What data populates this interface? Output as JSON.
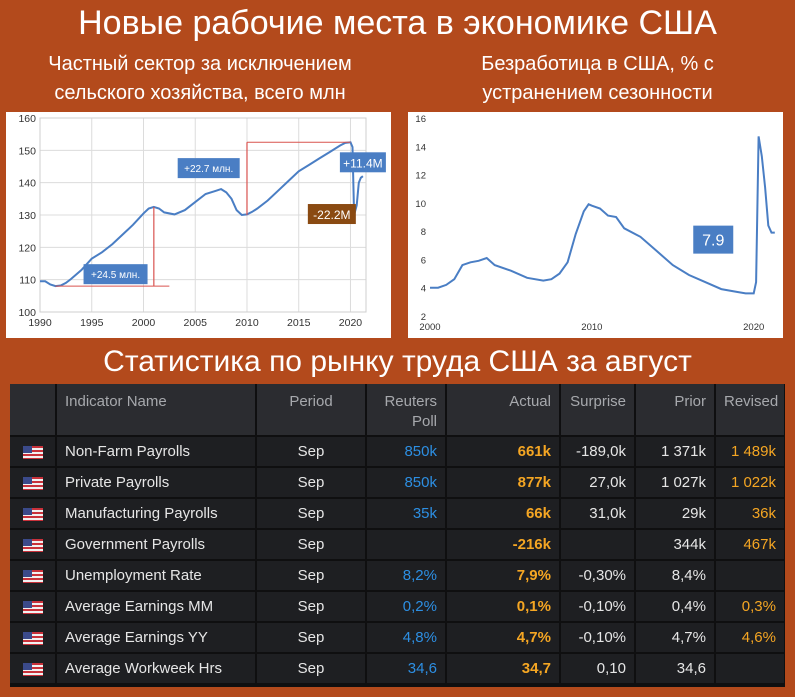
{
  "header": {
    "title": "Новые рабочие места в экономике США"
  },
  "left_chart": {
    "title_line1": "Частный сектор за исключением",
    "title_line2": "сельского хозяйства, всего млн"
  },
  "right_chart": {
    "title_line1": "Безработица в США, % с",
    "title_line2": "устранением сезонности"
  },
  "colors": {
    "background": "#b34a1c",
    "line": "#4a7ec4",
    "label_blue": "#4a7ec4",
    "label_brown": "#8a4a12",
    "red": "#d9534f",
    "table_bg": "#1e1f22",
    "blue_value": "#2d8fe3",
    "orange_value": "#f5a623"
  },
  "chart_data": [
    {
      "type": "line",
      "xlim": [
        1990,
        2021.5
      ],
      "ylim": [
        100,
        160
      ],
      "xticks": [
        "1990",
        "1995",
        "2000",
        "2005",
        "2010",
        "2015",
        "2020"
      ],
      "yticks": [
        "100",
        "110",
        "120",
        "130",
        "140",
        "150",
        "160"
      ],
      "grid": true,
      "x": [
        1990,
        1990.5,
        1991,
        1991.5,
        1992,
        1992.5,
        1993,
        1994,
        1995,
        1996,
        1997,
        1998,
        1999,
        2000,
        2000.5,
        2001,
        2001.5,
        2002,
        2003,
        2004,
        2005,
        2006,
        2007,
        2007.5,
        2008,
        2008.5,
        2009,
        2009.5,
        2010,
        2010.5,
        2011,
        2012,
        2013,
        2014,
        2015,
        2016,
        2017,
        2018,
        2019,
        2019.5,
        2020,
        2020.2,
        2020.35,
        2020.6,
        2020.8,
        2021,
        2021.2
      ],
      "values": [
        109.5,
        109.5,
        108.5,
        108,
        108.2,
        109,
        110.2,
        113,
        116.5,
        118.5,
        121,
        124,
        127,
        130.5,
        132,
        132.5,
        132,
        130.8,
        130.2,
        131.5,
        134,
        136.5,
        137.5,
        138,
        137,
        135,
        131.5,
        130,
        130.2,
        131,
        132,
        134.5,
        137.5,
        140.5,
        143.5,
        145.5,
        147.5,
        149.5,
        151.5,
        152.3,
        152.5,
        151,
        130,
        133,
        140,
        141.5,
        142
      ],
      "annotations": [
        {
          "text": "+24.5 млн.",
          "x": 1997.3,
          "y": 111.7
        },
        {
          "text": "+22.7 млн.",
          "x": 2006.3,
          "y": 144.5
        },
        {
          "text": "-22.2M",
          "x": 2018.2,
          "y": 130.3
        },
        {
          "text": "+11.4M",
          "x": 2021.2,
          "y": 146.3
        }
      ]
    },
    {
      "type": "line",
      "xlim": [
        2000,
        2021.5
      ],
      "ylim": [
        2,
        16
      ],
      "xticks": [
        "2000",
        "2010",
        "2020"
      ],
      "yticks": [
        "2",
        "4",
        "6",
        "8",
        "10",
        "12",
        "14",
        "16"
      ],
      "grid": false,
      "x": [
        2000,
        2000.5,
        2001,
        2001.5,
        2002,
        2002.5,
        2003,
        2003.5,
        2004,
        2005,
        2006,
        2007,
        2007.5,
        2008,
        2008.5,
        2009,
        2009.5,
        2009.8,
        2010,
        2010.5,
        2011,
        2011.5,
        2012,
        2013,
        2014,
        2015,
        2016,
        2017,
        2018,
        2019,
        2019.5,
        2020,
        2020.15,
        2020.3,
        2020.5,
        2020.7,
        2020.9,
        2021.1,
        2021.3
      ],
      "values": [
        4.0,
        4.0,
        4.2,
        4.6,
        5.6,
        5.8,
        5.9,
        6.1,
        5.6,
        5.2,
        4.7,
        4.5,
        4.6,
        5.0,
        5.8,
        7.8,
        9.4,
        9.9,
        9.8,
        9.6,
        9.1,
        9.0,
        8.2,
        7.6,
        6.6,
        5.6,
        4.9,
        4.4,
        3.9,
        3.7,
        3.6,
        3.6,
        4.4,
        14.7,
        13.3,
        11.1,
        8.4,
        7.9,
        7.9
      ],
      "annotations": [
        {
          "text": "7.9",
          "x": 2017.5,
          "y": 7.4
        }
      ]
    }
  ],
  "table_section": {
    "title": "Статистика по рынку труда США за август",
    "headers": {
      "indicator": "Indicator Name",
      "period": "Period",
      "poll_line1": "Reuters",
      "poll_line2": "Poll",
      "actual": "Actual",
      "surprise": "Surprise",
      "prior": "Prior",
      "revised": "Revised"
    },
    "rows": [
      {
        "name": "Non-Farm Payrolls",
        "period": "Sep",
        "poll": "850k",
        "actual": "661k",
        "surprise": "-189,0k",
        "prior": "1 371k",
        "revised": "1 489k"
      },
      {
        "name": "Private Payrolls",
        "period": "Sep",
        "poll": "850k",
        "actual": "877k",
        "surprise": "27,0k",
        "prior": "1 027k",
        "revised": "1 022k"
      },
      {
        "name": "Manufacturing Payrolls",
        "period": "Sep",
        "poll": "35k",
        "actual": "66k",
        "surprise": "31,0k",
        "prior": "29k",
        "revised": "36k"
      },
      {
        "name": "Government Payrolls",
        "period": "Sep",
        "poll": "",
        "actual": "-216k",
        "surprise": "",
        "prior": "344k",
        "revised": "467k"
      },
      {
        "name": "Unemployment Rate",
        "period": "Sep",
        "poll": "8,2%",
        "actual": "7,9%",
        "surprise": "-0,30%",
        "prior": "8,4%",
        "revised": ""
      },
      {
        "name": "Average Earnings MM",
        "period": "Sep",
        "poll": "0,2%",
        "actual": "0,1%",
        "surprise": "-0,10%",
        "prior": "0,4%",
        "revised": "0,3%"
      },
      {
        "name": "Average Earnings YY",
        "period": "Sep",
        "poll": "4,8%",
        "actual": "4,7%",
        "surprise": "-0,10%",
        "prior": "4,7%",
        "revised": "4,6%"
      },
      {
        "name": "Average Workweek Hrs",
        "period": "Sep",
        "poll": "34,6",
        "actual": "34,7",
        "surprise": "0,10",
        "prior": "34,6",
        "revised": ""
      }
    ]
  }
}
